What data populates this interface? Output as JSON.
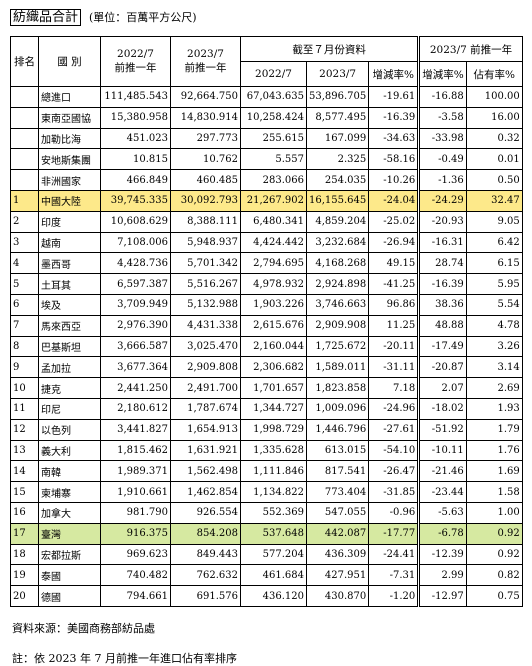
{
  "header": {
    "title": "紡織品合計",
    "unit": "(單位：百萬平方公尺)"
  },
  "table": {
    "columns": {
      "rank": "排名",
      "country": "國 別",
      "prev2022": [
        "2022/7",
        "前推一年"
      ],
      "prev2023": [
        "2023/7",
        "前推一年"
      ],
      "ytd": "截至７月份資料",
      "ytd2022": "2022/7",
      "ytd2023": "2023/7",
      "ytdChange": "增減率%",
      "last": "2023/7 前推一年",
      "lastChange": "增減率%",
      "share": "佔有率%"
    },
    "rows": [
      {
        "name": "總進口",
        "cells": [
          "111,485.543",
          "92,664.750",
          "67,043.635",
          "53,896.705",
          "-19.61",
          "-16.88",
          "100.00"
        ]
      },
      {
        "name": "東南亞國協",
        "cells": [
          "15,380.958",
          "14,830.914",
          "10,258.424",
          "8,577.495",
          "-16.39",
          "-3.58",
          "16.00"
        ]
      },
      {
        "name": "加勒比海",
        "cells": [
          "451.023",
          "297.773",
          "255.615",
          "167.099",
          "-34.63",
          "-33.98",
          "0.32"
        ]
      },
      {
        "name": "安地斯集團",
        "cells": [
          "10.815",
          "10.762",
          "5.557",
          "2.325",
          "-58.16",
          "-0.49",
          "0.01"
        ]
      },
      {
        "name": "非洲國家",
        "cells": [
          "466.849",
          "460.485",
          "283.066",
          "254.035",
          "-10.26",
          "-1.36",
          "0.50"
        ]
      },
      {
        "rank": "1",
        "name": "中國大陸",
        "highlight": "yellow",
        "cells": [
          "39,745.335",
          "30,092.793",
          "21,267.902",
          "16,155.645",
          "-24.04",
          "-24.29",
          "32.47"
        ]
      },
      {
        "rank": "2",
        "name": "印度",
        "cells": [
          "10,608.629",
          "8,388.111",
          "6,480.341",
          "4,859.204",
          "-25.02",
          "-20.93",
          "9.05"
        ]
      },
      {
        "rank": "3",
        "name": "越南",
        "cells": [
          "7,108.006",
          "5,948.937",
          "4,424.442",
          "3,232.684",
          "-26.94",
          "-16.31",
          "6.42"
        ]
      },
      {
        "rank": "4",
        "name": "墨西哥",
        "cells": [
          "4,428.736",
          "5,701.342",
          "2,794.695",
          "4,168.268",
          "49.15",
          "28.74",
          "6.15"
        ]
      },
      {
        "rank": "5",
        "name": "土耳其",
        "cells": [
          "6,597.387",
          "5,516.267",
          "4,978.932",
          "2,924.898",
          "-41.25",
          "-16.39",
          "5.95"
        ]
      },
      {
        "rank": "6",
        "name": "埃及",
        "cells": [
          "3,709.949",
          "5,132.988",
          "1,903.226",
          "3,746.663",
          "96.86",
          "38.36",
          "5.54"
        ]
      },
      {
        "rank": "7",
        "name": "馬來西亞",
        "cells": [
          "2,976.390",
          "4,431.338",
          "2,615.676",
          "2,909.908",
          "11.25",
          "48.88",
          "4.78"
        ]
      },
      {
        "rank": "8",
        "name": "巴基斯坦",
        "cells": [
          "3,666.587",
          "3,025.470",
          "2,160.044",
          "1,725.672",
          "-20.11",
          "-17.49",
          "3.26"
        ]
      },
      {
        "rank": "9",
        "name": "孟加拉",
        "cells": [
          "3,677.364",
          "2,909.808",
          "2,306.682",
          "1,589.011",
          "-31.11",
          "-20.87",
          "3.14"
        ]
      },
      {
        "rank": "10",
        "name": "捷克",
        "cells": [
          "2,441.250",
          "2,491.700",
          "1,701.657",
          "1,823.858",
          "7.18",
          "2.07",
          "2.69"
        ]
      },
      {
        "rank": "11",
        "name": "印尼",
        "cells": [
          "2,180.612",
          "1,787.674",
          "1,344.727",
          "1,009.096",
          "-24.96",
          "-18.02",
          "1.93"
        ]
      },
      {
        "rank": "12",
        "name": "以色列",
        "cells": [
          "3,441.827",
          "1,654.913",
          "1,998.729",
          "1,446.796",
          "-27.61",
          "-51.92",
          "1.79"
        ]
      },
      {
        "rank": "13",
        "name": "義大利",
        "cells": [
          "1,815.462",
          "1,631.921",
          "1,335.628",
          "613.015",
          "-54.10",
          "-10.11",
          "1.76"
        ]
      },
      {
        "rank": "14",
        "name": "南韓",
        "cells": [
          "1,989.371",
          "1,562.498",
          "1,111.846",
          "817.541",
          "-26.47",
          "-21.46",
          "1.69"
        ]
      },
      {
        "rank": "15",
        "name": "柬埔寨",
        "cells": [
          "1,910.661",
          "1,462.854",
          "1,134.822",
          "773.404",
          "-31.85",
          "-23.44",
          "1.58"
        ]
      },
      {
        "rank": "16",
        "name": "加拿大",
        "cells": [
          "981.790",
          "926.554",
          "552.369",
          "547.055",
          "-0.96",
          "-5.63",
          "1.00"
        ]
      },
      {
        "rank": "17",
        "name": "臺灣",
        "highlight": "green",
        "cells": [
          "916.375",
          "854.208",
          "537.648",
          "442.087",
          "-17.77",
          "-6.78",
          "0.92"
        ]
      },
      {
        "rank": "18",
        "name": "宏都拉斯",
        "cells": [
          "969.623",
          "849.443",
          "577.204",
          "436.309",
          "-24.41",
          "-12.39",
          "0.92"
        ]
      },
      {
        "rank": "19",
        "name": "泰國",
        "cells": [
          "740.482",
          "762.632",
          "461.684",
          "427.951",
          "-7.31",
          "2.99",
          "0.82"
        ]
      },
      {
        "rank": "20",
        "name": "德國",
        "cells": [
          "794.661",
          "691.576",
          "436.120",
          "430.870",
          "-1.20",
          "-12.97",
          "0.75"
        ]
      }
    ]
  },
  "footer": {
    "source": "資料來源：美國商務部紡品處",
    "note": "註：依 2023 年 7 月前推一年進口佔有率排序"
  }
}
